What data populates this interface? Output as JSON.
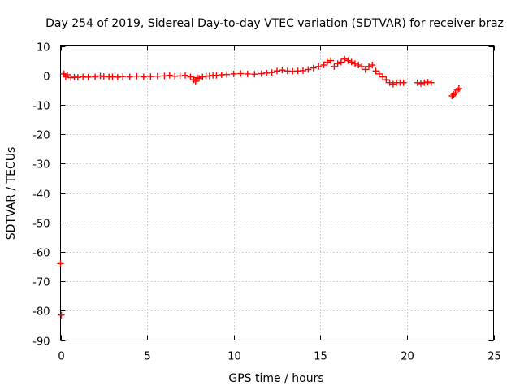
{
  "chart_data": {
    "type": "scatter",
    "title": "Day 254 of 2019, Sidereal Day-to-day VTEC variation (SDTVAR) for receiver braz",
    "xlabel": "GPS time / hours",
    "ylabel": "SDTVAR / TECUs",
    "xlim": [
      0,
      25
    ],
    "ylim": [
      -90,
      10
    ],
    "xticks": [
      0,
      5,
      10,
      15,
      20,
      25
    ],
    "yticks": [
      10,
      0,
      -10,
      -20,
      -30,
      -40,
      -50,
      -60,
      -70,
      -80,
      -90
    ],
    "grid": true,
    "marker": "plus",
    "series": [
      {
        "name": "SDTVAR",
        "color": "#ff0000",
        "x": [
          0.0,
          0.05,
          0.2,
          0.3,
          0.4,
          0.6,
          0.8,
          1.0,
          1.3,
          1.6,
          2.0,
          2.3,
          2.5,
          2.8,
          3.0,
          3.3,
          3.6,
          4.0,
          4.4,
          4.8,
          5.2,
          5.6,
          6.0,
          6.3,
          6.6,
          6.9,
          7.2,
          7.5,
          7.7,
          7.8,
          7.9,
          8.0,
          8.2,
          8.4,
          8.6,
          8.8,
          9.0,
          9.3,
          9.6,
          10.0,
          10.4,
          10.8,
          11.2,
          11.6,
          11.9,
          12.2,
          12.5,
          12.8,
          13.1,
          13.4,
          13.7,
          14.0,
          14.3,
          14.6,
          14.9,
          15.2,
          15.4,
          15.6,
          15.8,
          16.0,
          16.2,
          16.4,
          16.6,
          16.8,
          17.0,
          17.2,
          17.4,
          17.6,
          17.8,
          18.0,
          18.2,
          18.4,
          18.6,
          18.8,
          19.0,
          19.2,
          19.4,
          19.6,
          19.8,
          20.6,
          20.8,
          21.0,
          21.2,
          21.4,
          22.6,
          22.7,
          22.8,
          22.9,
          23.0
        ],
        "y": [
          -64,
          -81.5,
          0.5,
          -0.5,
          0.2,
          -0.8,
          -0.6,
          -0.7,
          -0.5,
          -0.6,
          -0.5,
          -0.2,
          -0.4,
          -0.5,
          -0.5,
          -0.6,
          -0.4,
          -0.5,
          -0.3,
          -0.5,
          -0.4,
          -0.3,
          -0.2,
          0.0,
          -0.3,
          -0.2,
          0.0,
          -0.5,
          -1.5,
          -2.0,
          -0.8,
          -1.0,
          -0.5,
          -0.3,
          -0.2,
          0.0,
          0.0,
          0.2,
          0.3,
          0.5,
          0.6,
          0.5,
          0.4,
          0.6,
          0.8,
          1.0,
          1.5,
          1.8,
          1.5,
          1.4,
          1.5,
          1.6,
          2.0,
          2.5,
          3.0,
          3.5,
          4.5,
          5.0,
          3.0,
          4.0,
          4.5,
          5.5,
          5.0,
          4.5,
          4.0,
          3.5,
          3.0,
          2.0,
          3.0,
          3.5,
          1.5,
          0.5,
          -0.5,
          -1.5,
          -2.5,
          -3.0,
          -2.5,
          -2.5,
          -2.5,
          -2.5,
          -2.8,
          -2.5,
          -2.3,
          -2.5,
          -7.0,
          -6.5,
          -6.0,
          -5.0,
          -4.5
        ]
      }
    ]
  }
}
